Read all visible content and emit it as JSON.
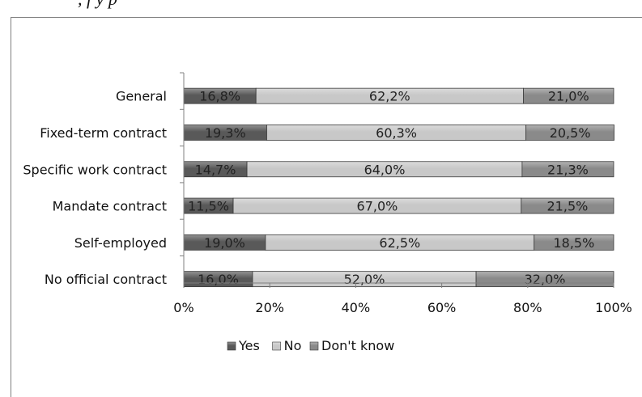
{
  "caption": ", f           y                       p",
  "colors": {
    "yes": "#595959",
    "no": "#c8c8c8",
    "dontknow": "#8a8a8a",
    "axis": "#808080",
    "grid": "#000000"
  },
  "chart_data": {
    "type": "bar",
    "orientation": "horizontal",
    "stacked": "percent",
    "categories": [
      "General",
      "Fixed-term contract",
      "Specific work contract",
      "Mandate contract",
      "Self-employed",
      "No official contract"
    ],
    "series": [
      {
        "name": "Yes",
        "values": [
          16.8,
          19.3,
          14.7,
          11.5,
          19.0,
          16.0
        ],
        "labels": [
          "16,8%",
          "19,3%",
          "14,7%",
          "11,5%",
          "19,0%",
          "16,0%"
        ],
        "color": "#595959"
      },
      {
        "name": "No",
        "values": [
          62.2,
          60.3,
          64.0,
          67.0,
          62.5,
          52.0
        ],
        "labels": [
          "62,2%",
          "60,3%",
          "64,0%",
          "67,0%",
          "62,5%",
          "52,0%"
        ],
        "color": "#c8c8c8"
      },
      {
        "name": "Don't know",
        "values": [
          21.0,
          20.5,
          21.3,
          21.5,
          18.5,
          32.0
        ],
        "labels": [
          "21,0%",
          "20,5%",
          "21,3%",
          "21,5%",
          "18,5%",
          "32,0%"
        ],
        "color": "#8a8a8a"
      }
    ],
    "xlim": [
      0,
      100
    ],
    "xticks": [
      "0%",
      "20%",
      "40%",
      "60%",
      "80%",
      "100%"
    ],
    "legend": "bottom",
    "grid": false
  }
}
